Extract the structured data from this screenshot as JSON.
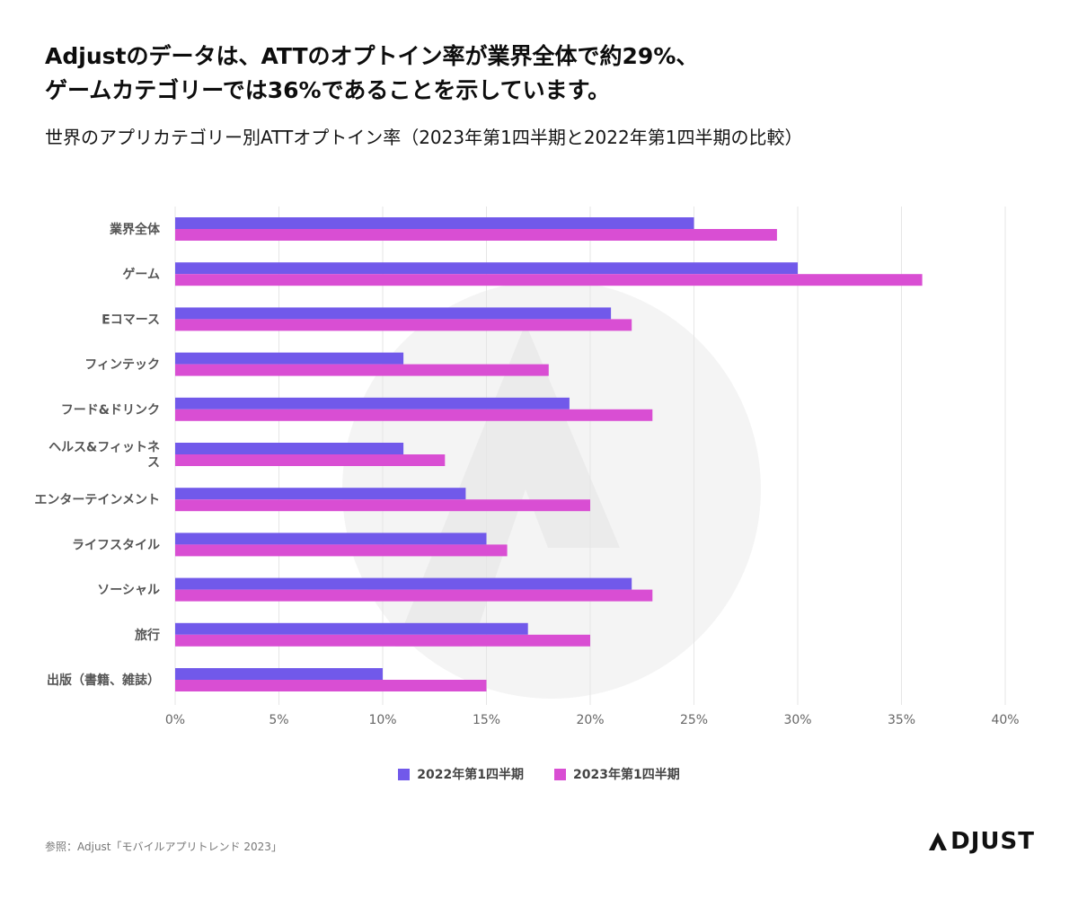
{
  "header": {
    "title_line1": "Adjustのデータは、ATTのオプトイン率が業界全体で約29%、",
    "title_line2": "ゲームカテゴリーでは36%であることを示しています。",
    "subtitle": "世界のアプリカテゴリー別ATTオプトイン率（2023年第1四半期と2022年第1四半期の比較）"
  },
  "chart_data": {
    "type": "bar",
    "orientation": "horizontal",
    "title": "世界のアプリカテゴリー別ATTオプトイン率（2023年第1四半期と2022年第1四半期の比較）",
    "xlabel": "",
    "ylabel": "",
    "xlim": [
      0,
      40
    ],
    "x_tick_labels": [
      "0%",
      "5%",
      "10%",
      "15%",
      "20%",
      "25%",
      "30%",
      "35%",
      "40%"
    ],
    "grid": true,
    "legend_position": "bottom",
    "categories": [
      "業界全体",
      "ゲーム",
      "Eコマース",
      "フィンテック",
      "フード&ドリンク",
      "ヘルス&フィットネス",
      "エンターテインメント",
      "ライフスタイル",
      "ソーシャル",
      "旅行",
      "出版（書籍、雑誌）"
    ],
    "category_display": [
      [
        "業界全体"
      ],
      [
        "ゲーム"
      ],
      [
        "Eコマース"
      ],
      [
        "フィンテック"
      ],
      [
        "フード&ドリンク"
      ],
      [
        "ヘルス&フィットネ",
        "ス"
      ],
      [
        "エンターテインメント"
      ],
      [
        "ライフスタイル"
      ],
      [
        "ソーシャル"
      ],
      [
        "旅行"
      ],
      [
        "出版（書籍、雑誌）"
      ]
    ],
    "series": [
      {
        "name": "2022年第1四半期",
        "color": "#7159ea",
        "values": [
          25,
          30,
          21,
          11,
          19,
          11,
          14,
          15,
          22,
          17,
          10
        ]
      },
      {
        "name": "2023年第1四半期",
        "color": "#d94ed3",
        "values": [
          29,
          36,
          22,
          18,
          23,
          13,
          20,
          16,
          23,
          20,
          15
        ]
      }
    ]
  },
  "legend": {
    "items": [
      {
        "label": "2022年第1四半期",
        "color": "#7159ea"
      },
      {
        "label": "2023年第1四半期",
        "color": "#d94ed3"
      }
    ]
  },
  "footer": {
    "source": "参照：Adjust「モバイルアプリトレンド 2023」",
    "logo_text": "DJUST"
  }
}
